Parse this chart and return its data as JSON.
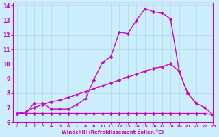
{
  "background_color": "#cceeff",
  "line_color": "#cc00cc",
  "xlabel": "Windchill (Refroidissement éolien,°C)",
  "xlim": [
    -0.5,
    23
  ],
  "ylim": [
    6,
    14.2
  ],
  "xticks": [
    0,
    1,
    2,
    3,
    4,
    5,
    6,
    7,
    8,
    9,
    10,
    11,
    12,
    13,
    14,
    15,
    16,
    17,
    18,
    19,
    20,
    21,
    22,
    23
  ],
  "yticks": [
    6,
    7,
    8,
    9,
    10,
    11,
    12,
    13,
    14
  ],
  "grid_color": "#aadddd",
  "series": [
    {
      "comment": "top jagged line - rises high then drops",
      "x": [
        0,
        1,
        2,
        3,
        4,
        5,
        6,
        7,
        8,
        9,
        10,
        11,
        12,
        13,
        14,
        15,
        16,
        17,
        18,
        19,
        20,
        21
      ],
      "y": [
        6.6,
        6.6,
        7.3,
        7.3,
        6.9,
        6.9,
        6.9,
        7.2,
        7.6,
        8.9,
        10.1,
        10.5,
        12.2,
        12.1,
        13.0,
        13.8,
        13.6,
        13.5,
        13.1,
        9.5,
        8.0,
        7.3
      ],
      "marker": "D",
      "markersize": 2.2,
      "linewidth": 1.0
    },
    {
      "comment": "middle linear-ish line",
      "x": [
        0,
        1,
        2,
        3,
        4,
        5,
        6,
        7,
        8,
        9,
        10,
        11,
        12,
        13,
        14,
        15,
        16,
        17,
        18,
        19,
        20,
        21,
        22,
        23
      ],
      "y": [
        6.6,
        6.7,
        7.0,
        7.2,
        7.4,
        7.5,
        7.7,
        7.9,
        8.1,
        8.3,
        8.5,
        8.7,
        8.9,
        9.1,
        9.3,
        9.5,
        9.7,
        9.8,
        10.0,
        9.5,
        8.0,
        7.3,
        7.0,
        6.5
      ],
      "marker": "D",
      "markersize": 2.2,
      "linewidth": 1.0
    },
    {
      "comment": "bottom near-flat line",
      "x": [
        0,
        1,
        2,
        3,
        4,
        5,
        6,
        7,
        8,
        9,
        10,
        11,
        12,
        13,
        14,
        15,
        16,
        17,
        18,
        19,
        20,
        21,
        22,
        23
      ],
      "y": [
        6.6,
        6.6,
        6.6,
        6.6,
        6.6,
        6.6,
        6.6,
        6.6,
        6.6,
        6.6,
        6.6,
        6.6,
        6.6,
        6.6,
        6.6,
        6.6,
        6.6,
        6.6,
        6.6,
        6.6,
        6.6,
        6.6,
        6.6,
        6.5
      ],
      "marker": "D",
      "markersize": 2.2,
      "linewidth": 1.0
    }
  ]
}
